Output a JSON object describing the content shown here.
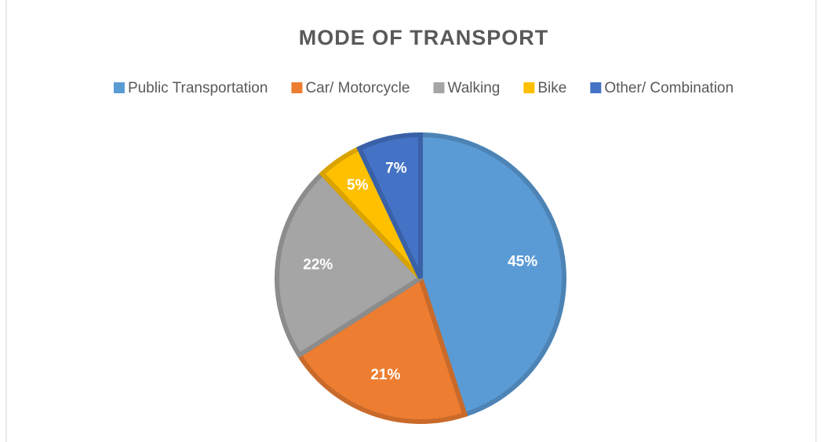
{
  "chart_data": {
    "type": "pie",
    "title": "MODE OF TRANSPORT",
    "categories": [
      "Public Transportation",
      "Car/ Motorcycle",
      "Walking",
      "Bike",
      "Other/ Combination"
    ],
    "values": [
      45,
      21,
      22,
      5,
      7
    ],
    "value_labels": [
      "45%",
      "21%",
      "22%",
      "5%",
      "7%"
    ],
    "colors": [
      "#5b9bd5",
      "#ed7d31",
      "#a5a5a5",
      "#ffc000",
      "#4472c4"
    ],
    "legend": "top"
  }
}
